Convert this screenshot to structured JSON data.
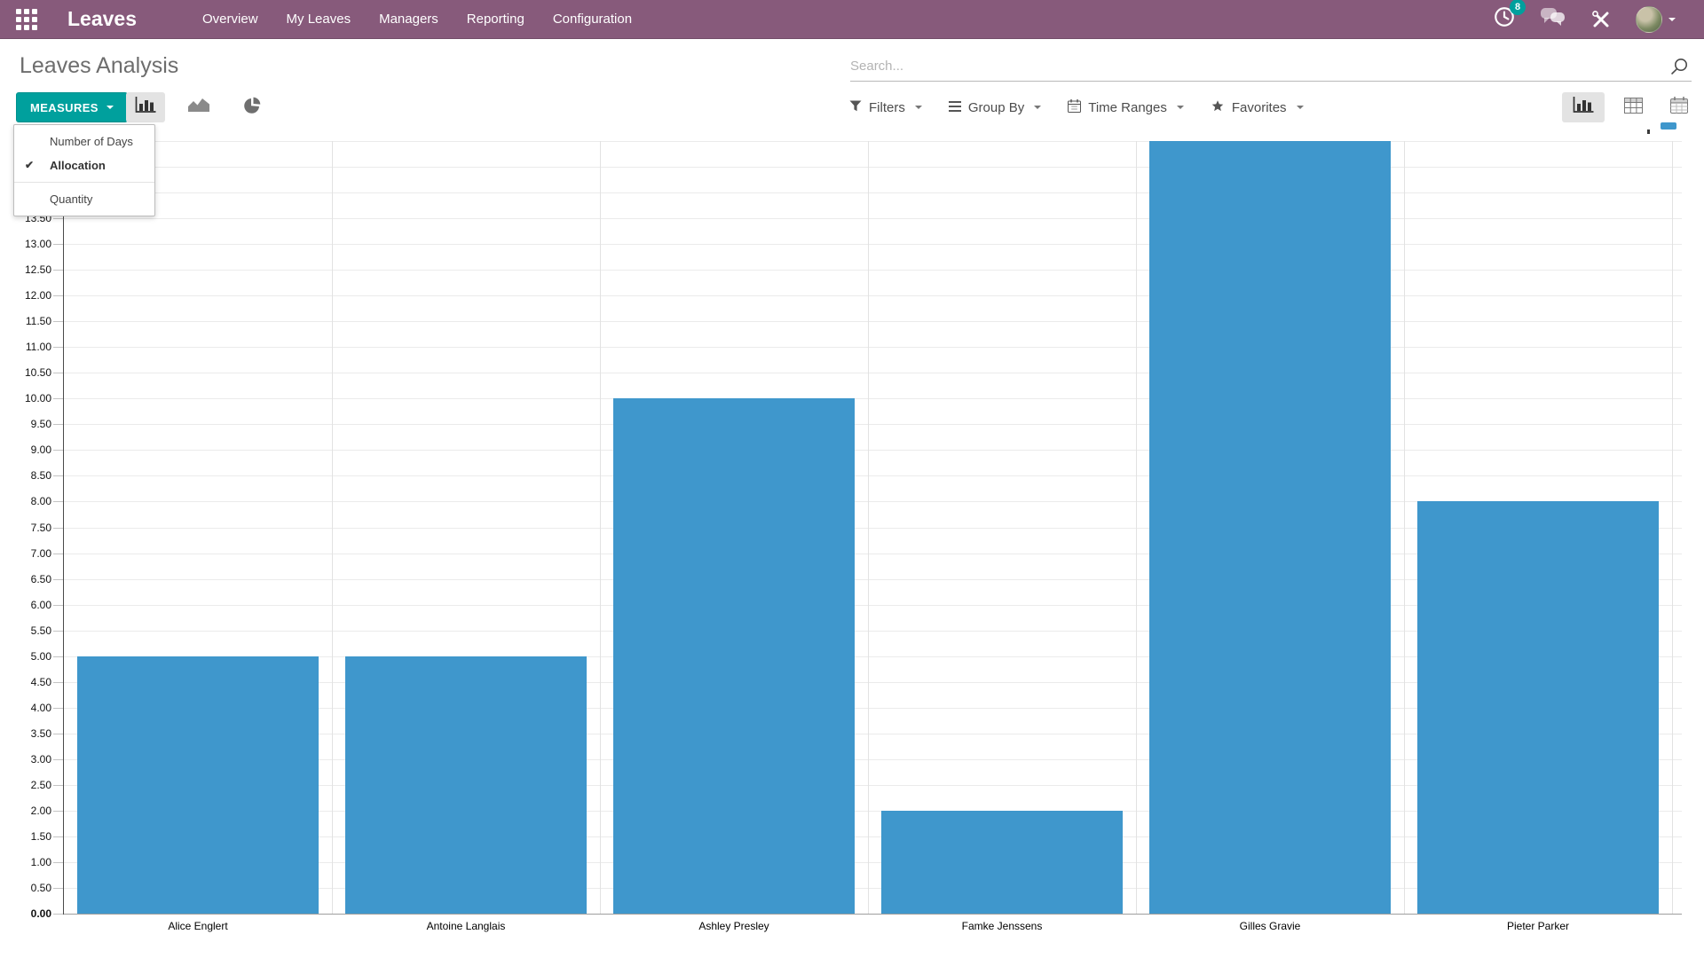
{
  "navbar": {
    "app_name": "Leaves",
    "menu_items": [
      {
        "label": "Overview"
      },
      {
        "label": "My Leaves"
      },
      {
        "label": "Managers"
      },
      {
        "label": "Reporting"
      },
      {
        "label": "Configuration"
      }
    ],
    "activity_badge": "8"
  },
  "control_panel": {
    "title": "Leaves Analysis",
    "search_placeholder": "Search...",
    "measures_label": "MEASURES",
    "chart_type_buttons": [
      {
        "id": "bar",
        "icon": "bar-chart-icon",
        "active": true
      },
      {
        "id": "line",
        "icon": "area-chart-icon",
        "active": false
      },
      {
        "id": "pie",
        "icon": "pie-chart-icon",
        "active": false
      }
    ],
    "filter_menus": [
      {
        "id": "filters",
        "label": "Filters",
        "icon": "filter-funnel-icon"
      },
      {
        "id": "group-by",
        "label": "Group By",
        "icon": "group-by-lines-icon"
      },
      {
        "id": "time-ranges",
        "label": "Time Ranges",
        "icon": "calendar-icon"
      },
      {
        "id": "favorites",
        "label": "Favorites",
        "icon": "star-icon"
      }
    ],
    "view_switcher": [
      {
        "id": "graph",
        "icon": "graph-view-icon",
        "active": true
      },
      {
        "id": "pivot",
        "icon": "pivot-view-icon",
        "active": false
      },
      {
        "id": "calendar",
        "icon": "calendar-view-icon",
        "active": false
      }
    ]
  },
  "measures_dropdown": {
    "items": [
      {
        "label": "Number of Days",
        "checked": false,
        "separator_before": false
      },
      {
        "label": "Allocation",
        "checked": true,
        "separator_before": false
      },
      {
        "label": "Quantity",
        "checked": false,
        "separator_before": true
      }
    ]
  },
  "chart_data": {
    "type": "bar",
    "title": "Leaves Analysis",
    "measure": "Allocation",
    "categories": [
      "Alice Englert",
      "Antoine Langlais",
      "Ashley Presley",
      "Famke Jenssens",
      "Gilles Gravie",
      "Pieter Parker"
    ],
    "values": [
      5.0,
      5.0,
      10.0,
      2.0,
      15.0,
      8.0
    ],
    "xlabel": "",
    "ylabel": "",
    "ylim": [
      0,
      15
    ],
    "ytick_step": 0.5,
    "ytick_format": "2-decimals",
    "grid": true,
    "legend_position": "top-right",
    "bar_color": "#3f97cc"
  },
  "colors": {
    "navbar_bg": "#875a7b",
    "accent_teal": "#00a09d",
    "bar_blue": "#3f97cc",
    "active_button_bg": "#e3e3e3"
  }
}
